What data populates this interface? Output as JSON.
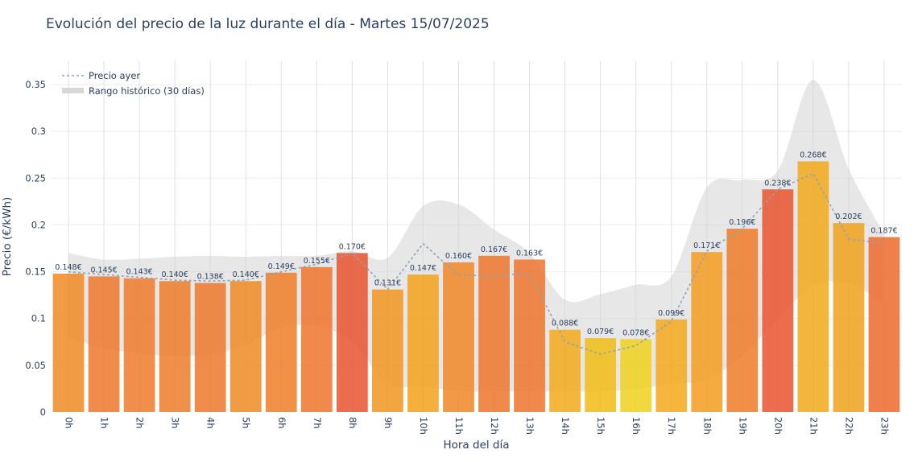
{
  "chart_data": {
    "type": "bar",
    "title": "Evolución del precio de la luz durante el día - Martes 15/07/2025",
    "xlabel": "Hora del día",
    "ylabel": "Precio (€/kWh)",
    "ylim": [
      0,
      0.375
    ],
    "yticks": [
      0,
      0.05,
      0.1,
      0.15,
      0.2,
      0.25,
      0.3,
      0.35
    ],
    "ytick_labels": [
      "0",
      "0.05",
      "0.1",
      "0.15",
      "0.2",
      "0.25",
      "0.3",
      "0.35"
    ],
    "grid": true,
    "legend_position": "top-left",
    "categories": [
      "0h",
      "1h",
      "2h",
      "3h",
      "4h",
      "5h",
      "6h",
      "7h",
      "8h",
      "9h",
      "10h",
      "11h",
      "12h",
      "13h",
      "14h",
      "15h",
      "16h",
      "17h",
      "18h",
      "19h",
      "20h",
      "21h",
      "22h",
      "23h"
    ],
    "series": [
      {
        "type": "bar",
        "values": [
          0.148,
          0.145,
          0.143,
          0.14,
          0.138,
          0.14,
          0.149,
          0.155,
          0.17,
          0.131,
          0.147,
          0.16,
          0.167,
          0.163,
          0.088,
          0.079,
          0.078,
          0.099,
          0.171,
          0.196,
          0.238,
          0.268,
          0.202,
          0.187
        ],
        "labels": [
          "0.148€",
          "0.145€",
          "0.143€",
          "0.140€",
          "0.138€",
          "0.140€",
          "0.149€",
          "0.155€",
          "0.170€",
          "0.131€",
          "0.147€",
          "0.160€",
          "0.167€",
          "0.163€",
          "0.088€",
          "0.079€",
          "0.078€",
          "0.099€",
          "0.171€",
          "0.196€",
          "0.238€",
          "0.268€",
          "0.202€",
          "0.187€"
        ],
        "colors": [
          "#f08a24",
          "#ed772c",
          "#ee7a2b",
          "#ed7b2a",
          "#ec782c",
          "#f08a24",
          "#ef7e28",
          "#ed742c",
          "#e9532f",
          "#f09520",
          "#f2a11b",
          "#ef8726",
          "#ed762c",
          "#ed742c",
          "#f2a91b",
          "#f1bc14",
          "#eed11c",
          "#f4a81b",
          "#f39c1f",
          "#ef7b28",
          "#e9532f",
          "#f2a81b",
          "#efa11c",
          "#ec6a2d"
        ]
      },
      {
        "type": "line",
        "name": "Precio ayer",
        "color": "#8ba4b6",
        "values": [
          0.15,
          0.147,
          0.144,
          0.141,
          0.14,
          0.141,
          0.15,
          0.158,
          0.17,
          0.131,
          0.18,
          0.146,
          0.146,
          0.148,
          0.075,
          0.062,
          0.071,
          0.097,
          0.172,
          0.196,
          0.238,
          0.255,
          0.185,
          0.18
        ]
      },
      {
        "type": "area-band",
        "name": "Rango histórico (30 días)",
        "color": "#d3d3d3",
        "upper": [
          0.17,
          0.163,
          0.164,
          0.166,
          0.167,
          0.166,
          0.167,
          0.167,
          0.172,
          0.165,
          0.22,
          0.222,
          0.195,
          0.17,
          0.12,
          0.126,
          0.136,
          0.145,
          0.24,
          0.248,
          0.258,
          0.355,
          0.26,
          0.19
        ],
        "lower": [
          0.08,
          0.068,
          0.063,
          0.06,
          0.062,
          0.072,
          0.09,
          0.092,
          0.075,
          0.03,
          0.028,
          0.022,
          0.022,
          0.022,
          0.022,
          0.022,
          0.025,
          0.03,
          0.035,
          0.06,
          0.1,
          0.135,
          0.138,
          0.115
        ]
      }
    ]
  }
}
